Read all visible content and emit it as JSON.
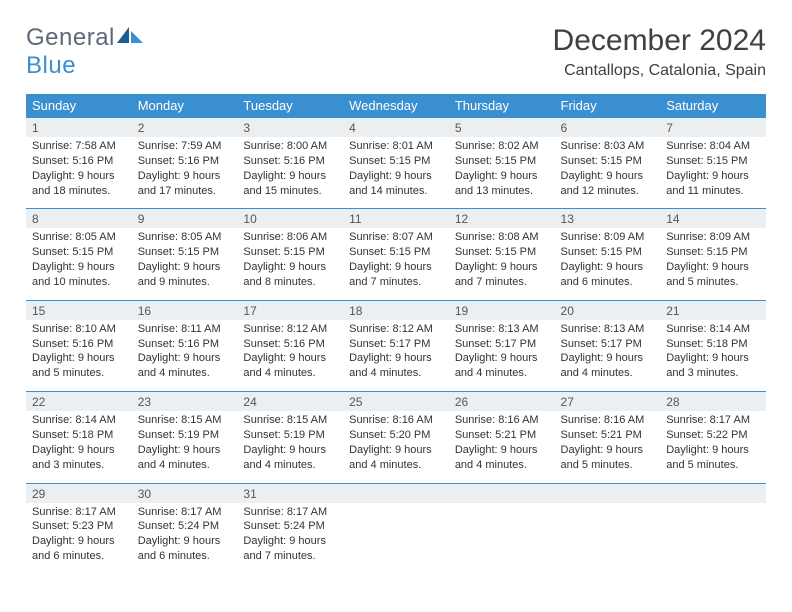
{
  "logo": {
    "text1": "General",
    "text2": "Blue"
  },
  "title": "December 2024",
  "location": "Cantallops, Catalonia, Spain",
  "colors": {
    "header_bg": "#3a8fd0",
    "header_text": "#ffffff",
    "daynum_bg": "#eceff1",
    "daynum_text": "#555555",
    "body_text": "#333333",
    "border": "#3a8fd0",
    "logo_gray": "#5a6a78",
    "logo_blue": "#3a8fd0"
  },
  "day_names": [
    "Sunday",
    "Monday",
    "Tuesday",
    "Wednesday",
    "Thursday",
    "Friday",
    "Saturday"
  ],
  "weeks": [
    [
      {
        "n": "1",
        "sr": "Sunrise: 7:58 AM",
        "ss": "Sunset: 5:16 PM",
        "d1": "Daylight: 9 hours",
        "d2": "and 18 minutes."
      },
      {
        "n": "2",
        "sr": "Sunrise: 7:59 AM",
        "ss": "Sunset: 5:16 PM",
        "d1": "Daylight: 9 hours",
        "d2": "and 17 minutes."
      },
      {
        "n": "3",
        "sr": "Sunrise: 8:00 AM",
        "ss": "Sunset: 5:16 PM",
        "d1": "Daylight: 9 hours",
        "d2": "and 15 minutes."
      },
      {
        "n": "4",
        "sr": "Sunrise: 8:01 AM",
        "ss": "Sunset: 5:15 PM",
        "d1": "Daylight: 9 hours",
        "d2": "and 14 minutes."
      },
      {
        "n": "5",
        "sr": "Sunrise: 8:02 AM",
        "ss": "Sunset: 5:15 PM",
        "d1": "Daylight: 9 hours",
        "d2": "and 13 minutes."
      },
      {
        "n": "6",
        "sr": "Sunrise: 8:03 AM",
        "ss": "Sunset: 5:15 PM",
        "d1": "Daylight: 9 hours",
        "d2": "and 12 minutes."
      },
      {
        "n": "7",
        "sr": "Sunrise: 8:04 AM",
        "ss": "Sunset: 5:15 PM",
        "d1": "Daylight: 9 hours",
        "d2": "and 11 minutes."
      }
    ],
    [
      {
        "n": "8",
        "sr": "Sunrise: 8:05 AM",
        "ss": "Sunset: 5:15 PM",
        "d1": "Daylight: 9 hours",
        "d2": "and 10 minutes."
      },
      {
        "n": "9",
        "sr": "Sunrise: 8:05 AM",
        "ss": "Sunset: 5:15 PM",
        "d1": "Daylight: 9 hours",
        "d2": "and 9 minutes."
      },
      {
        "n": "10",
        "sr": "Sunrise: 8:06 AM",
        "ss": "Sunset: 5:15 PM",
        "d1": "Daylight: 9 hours",
        "d2": "and 8 minutes."
      },
      {
        "n": "11",
        "sr": "Sunrise: 8:07 AM",
        "ss": "Sunset: 5:15 PM",
        "d1": "Daylight: 9 hours",
        "d2": "and 7 minutes."
      },
      {
        "n": "12",
        "sr": "Sunrise: 8:08 AM",
        "ss": "Sunset: 5:15 PM",
        "d1": "Daylight: 9 hours",
        "d2": "and 7 minutes."
      },
      {
        "n": "13",
        "sr": "Sunrise: 8:09 AM",
        "ss": "Sunset: 5:15 PM",
        "d1": "Daylight: 9 hours",
        "d2": "and 6 minutes."
      },
      {
        "n": "14",
        "sr": "Sunrise: 8:09 AM",
        "ss": "Sunset: 5:15 PM",
        "d1": "Daylight: 9 hours",
        "d2": "and 5 minutes."
      }
    ],
    [
      {
        "n": "15",
        "sr": "Sunrise: 8:10 AM",
        "ss": "Sunset: 5:16 PM",
        "d1": "Daylight: 9 hours",
        "d2": "and 5 minutes."
      },
      {
        "n": "16",
        "sr": "Sunrise: 8:11 AM",
        "ss": "Sunset: 5:16 PM",
        "d1": "Daylight: 9 hours",
        "d2": "and 4 minutes."
      },
      {
        "n": "17",
        "sr": "Sunrise: 8:12 AM",
        "ss": "Sunset: 5:16 PM",
        "d1": "Daylight: 9 hours",
        "d2": "and 4 minutes."
      },
      {
        "n": "18",
        "sr": "Sunrise: 8:12 AM",
        "ss": "Sunset: 5:17 PM",
        "d1": "Daylight: 9 hours",
        "d2": "and 4 minutes."
      },
      {
        "n": "19",
        "sr": "Sunrise: 8:13 AM",
        "ss": "Sunset: 5:17 PM",
        "d1": "Daylight: 9 hours",
        "d2": "and 4 minutes."
      },
      {
        "n": "20",
        "sr": "Sunrise: 8:13 AM",
        "ss": "Sunset: 5:17 PM",
        "d1": "Daylight: 9 hours",
        "d2": "and 4 minutes."
      },
      {
        "n": "21",
        "sr": "Sunrise: 8:14 AM",
        "ss": "Sunset: 5:18 PM",
        "d1": "Daylight: 9 hours",
        "d2": "and 3 minutes."
      }
    ],
    [
      {
        "n": "22",
        "sr": "Sunrise: 8:14 AM",
        "ss": "Sunset: 5:18 PM",
        "d1": "Daylight: 9 hours",
        "d2": "and 3 minutes."
      },
      {
        "n": "23",
        "sr": "Sunrise: 8:15 AM",
        "ss": "Sunset: 5:19 PM",
        "d1": "Daylight: 9 hours",
        "d2": "and 4 minutes."
      },
      {
        "n": "24",
        "sr": "Sunrise: 8:15 AM",
        "ss": "Sunset: 5:19 PM",
        "d1": "Daylight: 9 hours",
        "d2": "and 4 minutes."
      },
      {
        "n": "25",
        "sr": "Sunrise: 8:16 AM",
        "ss": "Sunset: 5:20 PM",
        "d1": "Daylight: 9 hours",
        "d2": "and 4 minutes."
      },
      {
        "n": "26",
        "sr": "Sunrise: 8:16 AM",
        "ss": "Sunset: 5:21 PM",
        "d1": "Daylight: 9 hours",
        "d2": "and 4 minutes."
      },
      {
        "n": "27",
        "sr": "Sunrise: 8:16 AM",
        "ss": "Sunset: 5:21 PM",
        "d1": "Daylight: 9 hours",
        "d2": "and 5 minutes."
      },
      {
        "n": "28",
        "sr": "Sunrise: 8:17 AM",
        "ss": "Sunset: 5:22 PM",
        "d1": "Daylight: 9 hours",
        "d2": "and 5 minutes."
      }
    ],
    [
      {
        "n": "29",
        "sr": "Sunrise: 8:17 AM",
        "ss": "Sunset: 5:23 PM",
        "d1": "Daylight: 9 hours",
        "d2": "and 6 minutes."
      },
      {
        "n": "30",
        "sr": "Sunrise: 8:17 AM",
        "ss": "Sunset: 5:24 PM",
        "d1": "Daylight: 9 hours",
        "d2": "and 6 minutes."
      },
      {
        "n": "31",
        "sr": "Sunrise: 8:17 AM",
        "ss": "Sunset: 5:24 PM",
        "d1": "Daylight: 9 hours",
        "d2": "and 7 minutes."
      },
      null,
      null,
      null,
      null
    ]
  ]
}
